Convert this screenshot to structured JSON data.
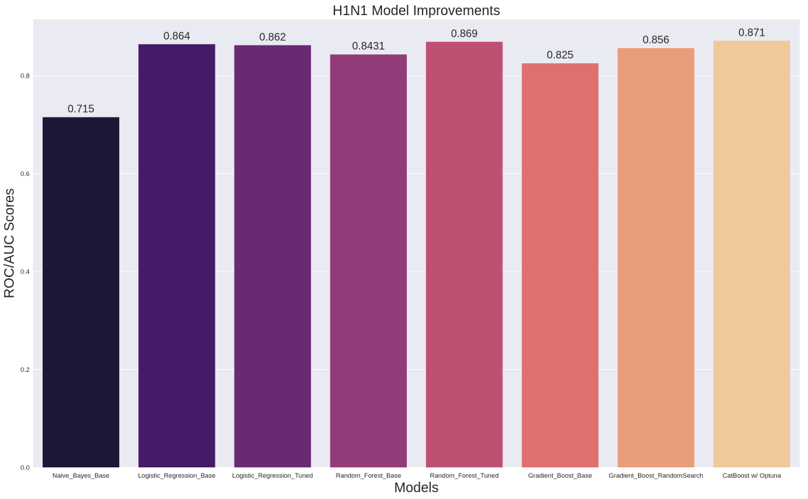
{
  "chart_data": {
    "type": "bar",
    "title": "H1N1 Model Improvements",
    "xlabel": "Models",
    "ylabel": "ROC/AUC Scores",
    "categories": [
      "Naive_Bayes_Base",
      "Logistic_Regression_Base",
      "Logistic_Regression_Tuned",
      "Random_Forest_Base",
      "Random_Forest_Tuned",
      "Gradient_Boost_Base",
      "Gradient_Boost_RandomSearch",
      "CatBoost w/ Optuna"
    ],
    "values": [
      0.715,
      0.864,
      0.862,
      0.8431,
      0.869,
      0.825,
      0.856,
      0.871
    ],
    "value_labels": [
      "0.715",
      "0.864",
      "0.862",
      "0.8431",
      "0.869",
      "0.825",
      "0.856",
      "0.871"
    ],
    "colors": [
      "#1b1736",
      "#451a66",
      "#692a74",
      "#913c79",
      "#bc5172",
      "#df706e",
      "#ea9d7a",
      "#efc99a"
    ],
    "yticks": [
      0.0,
      0.2,
      0.4,
      0.6,
      0.8
    ],
    "ytick_labels": [
      "0.0",
      "0.2",
      "0.4",
      "0.6",
      "0.8"
    ],
    "ylim": [
      0,
      0.915
    ],
    "grid": true,
    "background": "#eaeaf2",
    "grid_color": "#ffffff"
  }
}
